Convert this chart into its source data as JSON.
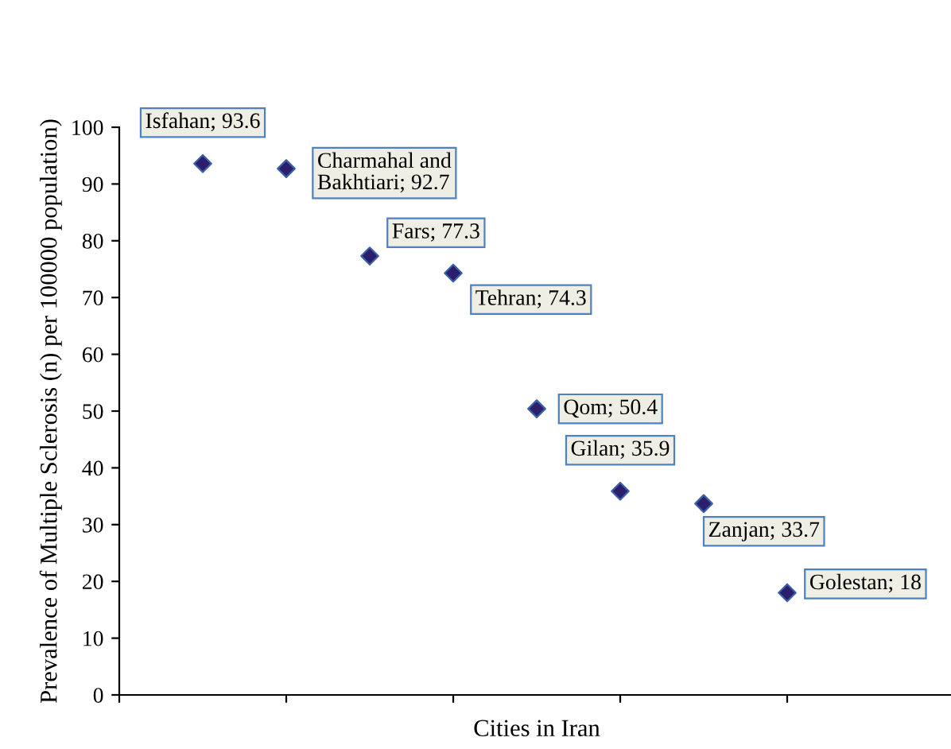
{
  "chart_data": {
    "type": "scatter",
    "xlabel": "Cities in Iran",
    "ylabel": "Prevalence of Multiple Sclerosis (n) per 100000 population)",
    "categories": [
      null,
      null,
      null,
      null,
      null,
      null,
      null,
      null,
      null,
      null,
      null
    ],
    "values": [
      null,
      93.6,
      92.7,
      77.3,
      74.3,
      50.4,
      35.9,
      33.7,
      18,
      null,
      null
    ],
    "value_labels": [
      null,
      "Isfahan; 93.6",
      "Charmahal and\nBakhtiari; 92.7",
      "Fars; 77.3",
      "Tehran; 74.3",
      "Qom; 50.4",
      "Gilan; 35.9",
      "Zanjan; 33.7",
      "Golestan; 18",
      null,
      null
    ],
    "color": "#2b1f6b",
    "marker": "diamond",
    "ylim": [
      0,
      100
    ],
    "yticks": [
      0,
      10,
      20,
      30,
      40,
      50,
      60,
      70,
      80,
      90,
      100
    ],
    "grid": false,
    "legend": false
  }
}
